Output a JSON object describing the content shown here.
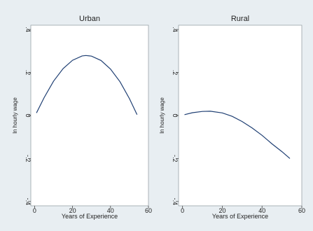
{
  "chart_data": [
    {
      "type": "line",
      "title": "Urban",
      "xlabel": "Years of Experience",
      "ylabel": "ln hourly wage",
      "xlim": [
        -2,
        60
      ],
      "ylim": [
        -0.42,
        0.42
      ],
      "xticks": [
        0,
        20,
        40,
        60
      ],
      "xtick_labels": [
        "0",
        "20",
        "40",
        "60"
      ],
      "yticks": [
        -0.4,
        -0.2,
        0,
        0.2,
        0.4
      ],
      "ytick_labels": [
        "-.4",
        "-.2",
        "0",
        ".2",
        ".4"
      ],
      "grid": false,
      "series": [
        {
          "x": [
            1,
            5,
            10,
            15,
            20,
            25,
            27,
            30,
            35,
            40,
            45,
            50,
            54
          ],
          "y": [
            0.012,
            0.083,
            0.16,
            0.218,
            0.257,
            0.277,
            0.279,
            0.276,
            0.256,
            0.216,
            0.157,
            0.078,
            0.004
          ]
        }
      ]
    },
    {
      "type": "line",
      "title": "Rural",
      "xlabel": "Years of Experience",
      "ylabel": "ln hourly wage",
      "xlim": [
        -2,
        60
      ],
      "ylim": [
        -0.42,
        0.42
      ],
      "xticks": [
        0,
        20,
        40,
        60
      ],
      "xtick_labels": [
        "0",
        "20",
        "40",
        "60"
      ],
      "yticks": [
        -0.4,
        -0.2,
        0,
        0.2,
        0.4
      ],
      "ytick_labels": [
        "-.4",
        "-.2",
        "0",
        ".2",
        ".4"
      ],
      "grid": false,
      "series": [
        {
          "x": [
            1,
            5,
            10,
            14,
            20,
            25,
            30,
            35,
            40,
            45,
            50,
            54
          ],
          "y": [
            0.004,
            0.013,
            0.019,
            0.02,
            0.012,
            -0.004,
            -0.028,
            -0.058,
            -0.092,
            -0.132,
            -0.168,
            -0.2
          ]
        }
      ]
    }
  ]
}
